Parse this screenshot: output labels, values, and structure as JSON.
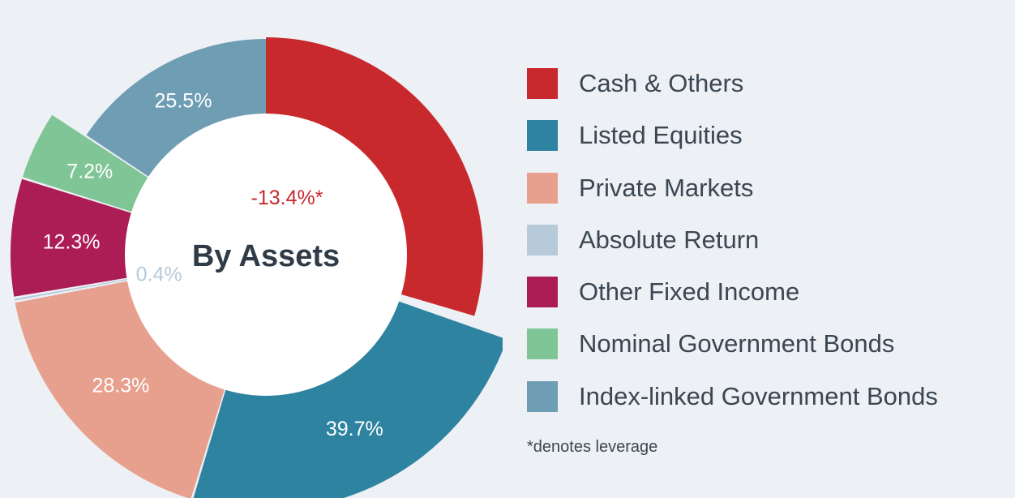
{
  "chart_data": {
    "type": "pie",
    "center_label": "By Assets",
    "slices": [
      {
        "label": "Cash & Others",
        "value": -13.4,
        "display": "-13.4%*",
        "color": "#c8292d",
        "label_color": "#c8292d"
      },
      {
        "label": "Listed Equities",
        "value": 39.7,
        "display": "39.7%",
        "color": "#2e83a0",
        "label_color": "#ffffff"
      },
      {
        "label": "Private Markets",
        "value": 28.3,
        "display": "28.3%",
        "color": "#e8a08e",
        "label_color": "#ffffff"
      },
      {
        "label": "Absolute Return",
        "value": 0.4,
        "display": "0.4%",
        "color": "#b7cad9",
        "label_color": "#b7cad9"
      },
      {
        "label": "Other Fixed Income",
        "value": 12.3,
        "display": "12.3%",
        "color": "#ad1d55",
        "label_color": "#ffffff"
      },
      {
        "label": "Nominal Government Bonds",
        "value": 7.2,
        "display": "7.2%",
        "color": "#80c595",
        "label_color": "#ffffff"
      },
      {
        "label": "Index-linked Government Bonds",
        "value": 25.5,
        "display": "25.5%",
        "color": "#6e9db4",
        "label_color": "#ffffff"
      }
    ],
    "legend_position": "right",
    "footnote": "*denotes leverage"
  }
}
